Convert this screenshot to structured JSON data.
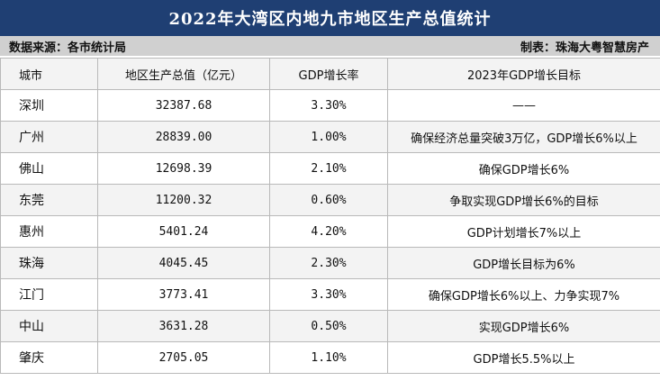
{
  "title": "2022年大湾区内地九市地区生产总值统计",
  "source": "数据来源：各市统计局",
  "maker": "制表：珠海大粤智慧房产",
  "headers": [
    "城市",
    "地区生产总值（亿元）",
    "GDP增长率",
    "2023年GDP增长目标"
  ],
  "rows": [
    {
      "city": "深圳",
      "gdp": "32387.68",
      "growth": "3.30%",
      "target": "——"
    },
    {
      "city": "广州",
      "gdp": "28839.00",
      "growth": "1.00%",
      "target": "确保经济总量突破3万亿，GDP增长6%以上"
    },
    {
      "city": "佛山",
      "gdp": "12698.39",
      "growth": "2.10%",
      "target": "确保GDP增长6%"
    },
    {
      "city": "东莞",
      "gdp": "11200.32",
      "growth": "0.60%",
      "target": "争取实现GDP增长6%的目标"
    },
    {
      "city": "惠州",
      "gdp": "5401.24",
      "growth": "4.20%",
      "target": "GDP计划增长7%以上"
    },
    {
      "city": "珠海",
      "gdp": "4045.45",
      "growth": "2.30%",
      "target": "GDP增长目标为6%"
    },
    {
      "city": "江门",
      "gdp": "3773.41",
      "growth": "3.30%",
      "target": "确保GDP增长6%以上、力争实现7%"
    },
    {
      "city": "中山",
      "gdp": "3631.28",
      "growth": "0.50%",
      "target": "实现GDP增长6%"
    },
    {
      "city": "肇庆",
      "gdp": "2705.05",
      "growth": "1.10%",
      "target": "GDP增长5.5%以上"
    }
  ]
}
